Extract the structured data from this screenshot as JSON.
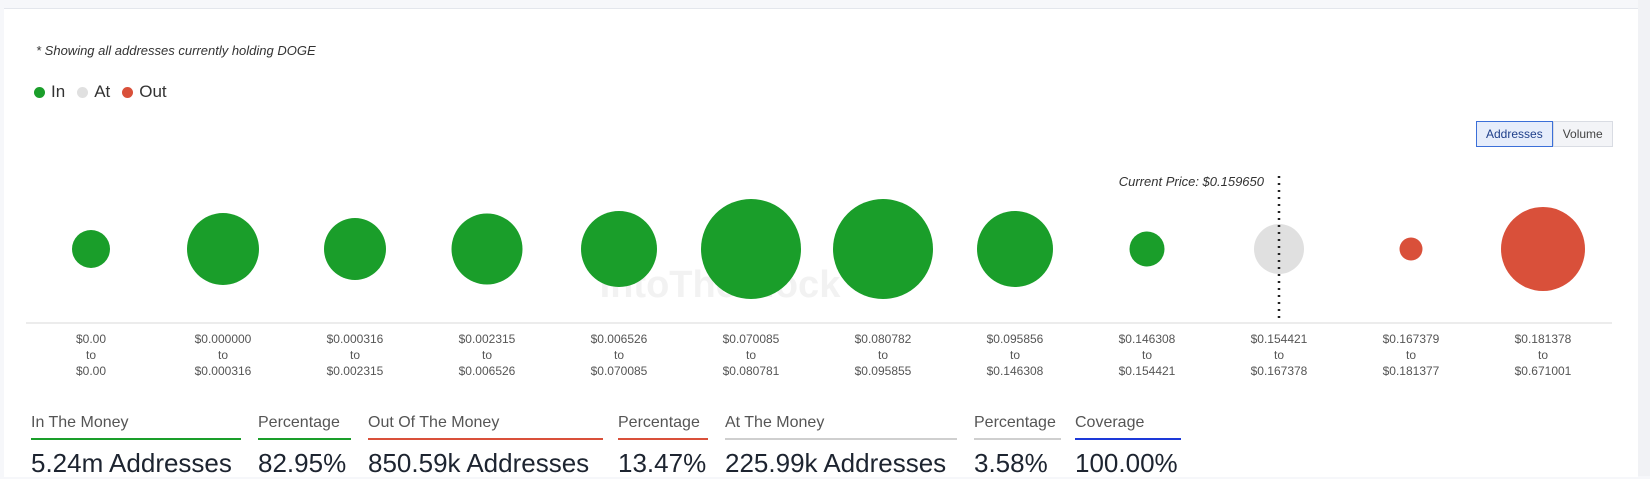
{
  "note": "* Showing all addresses currently holding DOGE",
  "legend": [
    {
      "label": "In",
      "color": "#1a9e2a"
    },
    {
      "label": "At",
      "color": "#e0e0e0"
    },
    {
      "label": "Out",
      "color": "#d9503a"
    }
  ],
  "toggle": {
    "addresses": "Addresses",
    "volume": "Volume",
    "active": "Addresses"
  },
  "watermark": "IntoTheBlock",
  "chart_data": {
    "type": "bubble",
    "current_price_label": "Current Price: $0.159650",
    "current_price_bin_index": 9,
    "buckets": [
      {
        "from": "$0.00",
        "to": "$0.00",
        "status": "In",
        "relative_size": 0.38
      },
      {
        "from": "$0.000000",
        "to": "$0.000316",
        "status": "In",
        "relative_size": 0.72
      },
      {
        "from": "$0.000316",
        "to": "$0.002315",
        "status": "In",
        "relative_size": 0.62
      },
      {
        "from": "$0.002315",
        "to": "$0.006526",
        "status": "In",
        "relative_size": 0.71
      },
      {
        "from": "$0.006526",
        "to": "$0.070085",
        "status": "In",
        "relative_size": 0.76
      },
      {
        "from": "$0.070085",
        "to": "$0.080781",
        "status": "In",
        "relative_size": 1.0
      },
      {
        "from": "$0.080782",
        "to": "$0.095855",
        "status": "In",
        "relative_size": 1.0
      },
      {
        "from": "$0.095856",
        "to": "$0.146308",
        "status": "In",
        "relative_size": 0.76
      },
      {
        "from": "$0.146308",
        "to": "$0.154421",
        "status": "In",
        "relative_size": 0.35
      },
      {
        "from": "$0.154421",
        "to": "$0.167378",
        "status": "At",
        "relative_size": 0.5
      },
      {
        "from": "$0.167379",
        "to": "$0.181377",
        "status": "Out",
        "relative_size": 0.23
      },
      {
        "from": "$0.181378",
        "to": "$0.671001",
        "status": "Out",
        "relative_size": 0.84
      }
    ],
    "connector": "to"
  },
  "stats": [
    {
      "label": "In The Money",
      "value": "5.24m Addresses",
      "color": "#1a9e2a"
    },
    {
      "label": "Percentage",
      "value": "82.95%",
      "color": "#1a9e2a"
    },
    {
      "label": "Out Of The Money",
      "value": "850.59k Addresses",
      "color": "#d9503a"
    },
    {
      "label": "Percentage",
      "value": "13.47%",
      "color": "#d9503a"
    },
    {
      "label": "At The Money",
      "value": "225.99k Addresses",
      "color": "#cfcfcf"
    },
    {
      "label": "Percentage",
      "value": "3.58%",
      "color": "#cfcfcf"
    },
    {
      "label": "Coverage",
      "value": "100.00%",
      "color": "#1d39d8"
    }
  ]
}
